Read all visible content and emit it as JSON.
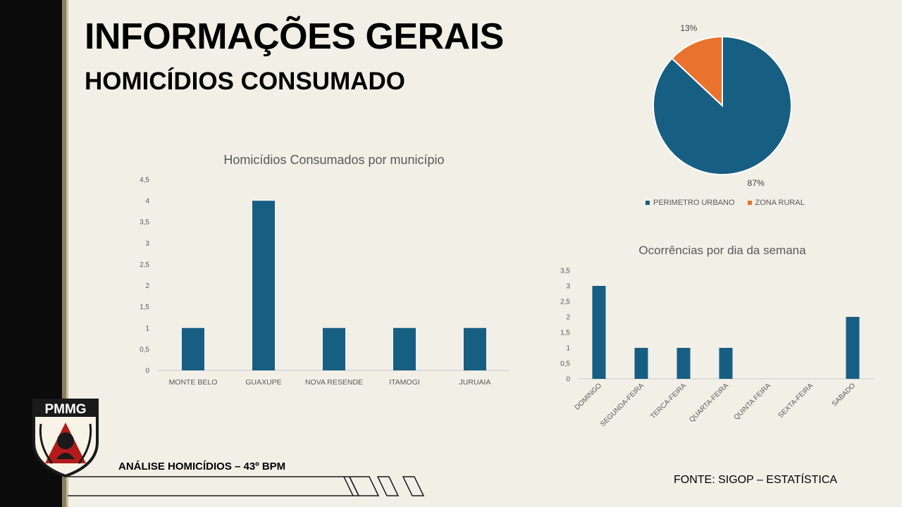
{
  "header": {
    "title": "INFORMAÇÕES GERAIS",
    "subtitle": "HOMICÍDIOS CONSUMADO"
  },
  "logo": {
    "text": "PMMG"
  },
  "footer": {
    "left": "ANÁLISE HOMICÍDIOS – 43º BPM",
    "right": "FONTE: SIGOP – ESTATÍSTICA"
  },
  "colors": {
    "bar": "#175e83",
    "pie_urban": "#175e83",
    "pie_rural": "#e9722e",
    "background": "#f2efe7"
  },
  "chart_data": [
    {
      "type": "bar",
      "title": "Homicídios Consumados por município",
      "categories": [
        "MONTE BELO",
        "GUAXUPE",
        "NOVA RESENDE",
        "ITAMOGI",
        "JURUAIA"
      ],
      "values": [
        1,
        4,
        1,
        1,
        1
      ],
      "yticks": [
        "0",
        "0,5",
        "1",
        "1,5",
        "2",
        "2,5",
        "3",
        "3,5",
        "4",
        "4,5"
      ],
      "ylim": [
        0,
        4.5
      ],
      "grid": false
    },
    {
      "type": "pie",
      "title": "",
      "labels": [
        "PERIMETRO URBANO",
        "ZONA RURAL"
      ],
      "values": [
        87,
        13
      ],
      "data_labels": [
        "87%",
        "13%"
      ],
      "legend": "bottom"
    },
    {
      "type": "bar",
      "title": "Ocorrências por dia da semana",
      "categories": [
        "DOMINGO",
        "SEGUNDA-FEIRA",
        "TERCA-FEIRA",
        "QUARTA-FEIRA",
        "QUINTA FEIRA",
        "SEXTA-FEIRA",
        "SABADO"
      ],
      "values": [
        3,
        1,
        1,
        1,
        0,
        0,
        2
      ],
      "yticks": [
        "0",
        "0,5",
        "1",
        "1,5",
        "2",
        "2,5",
        "3",
        "3,5"
      ],
      "ylim": [
        0,
        3.5
      ],
      "grid": false
    }
  ]
}
